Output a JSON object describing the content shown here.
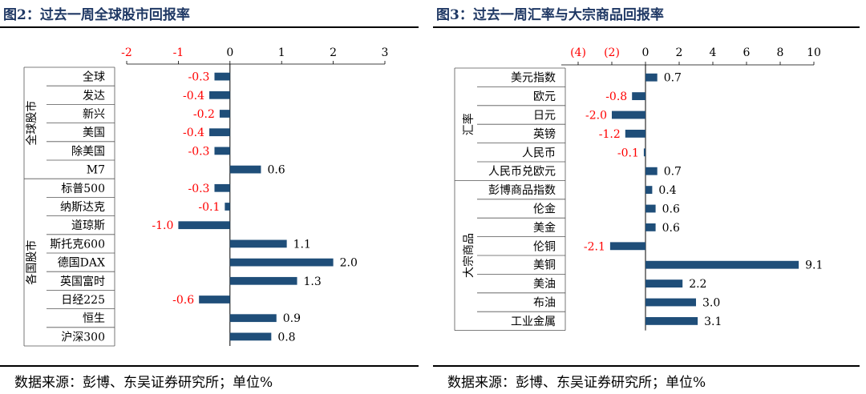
{
  "figures": [
    {
      "title": "图2：过去一周全球股市回报率",
      "source": "数据来源：彭博、东吴证券研究所；单位%",
      "chart_data": {
        "type": "bar",
        "orientation": "horizontal",
        "xlim": [
          -2,
          3
        ],
        "x_ticks": [
          -2,
          -1,
          0,
          1,
          2,
          3
        ],
        "x_tick_labels": [
          "-2",
          "-1",
          "0",
          "1",
          "2",
          "3"
        ],
        "negative_color": "#ff0000",
        "positive_color": "#000000",
        "bar_color": "#1f4e79",
        "groups": [
          {
            "label": "全球股市",
            "start": 0,
            "end": 5
          },
          {
            "label": "各国股市",
            "start": 6,
            "end": 14
          }
        ],
        "categories": [
          "全球",
          "发达",
          "新兴",
          "美国",
          "除美国",
          "M7",
          "标普500",
          "纳斯达克",
          "道琼斯",
          "斯托克600",
          "德国DAX",
          "英国富时",
          "日经225",
          "恒生",
          "沪深300"
        ],
        "values": [
          -0.3,
          -0.4,
          -0.2,
          -0.4,
          -0.3,
          0.6,
          -0.3,
          -0.1,
          -1.0,
          1.1,
          2.0,
          1.3,
          -0.6,
          0.9,
          0.8
        ],
        "value_labels": [
          "-0.3",
          "-0.4",
          "-0.2",
          "-0.4",
          "-0.3",
          "0.6",
          "-0.3",
          "-0.1",
          "-1.0",
          "1.1",
          "2.0",
          "1.3",
          "-0.6",
          "0.9",
          "0.8"
        ]
      }
    },
    {
      "title": "图3：过去一周汇率与大宗商品回报率",
      "source": "数据来源：彭博、东吴证券研究所；单位%",
      "chart_data": {
        "type": "bar",
        "orientation": "horizontal",
        "xlim": [
          -5,
          10
        ],
        "x_ticks": [
          -4,
          -2,
          0,
          2,
          4,
          6,
          8,
          10
        ],
        "x_tick_labels": [
          "(4)",
          "(2)",
          "0",
          "2",
          "4",
          "6",
          "8",
          "10"
        ],
        "negative_color": "#ff0000",
        "positive_color": "#000000",
        "bar_color": "#1f4e79",
        "groups": [
          {
            "label": "汇率",
            "start": 0,
            "end": 5
          },
          {
            "label": "大宗商品",
            "start": 6,
            "end": 13
          }
        ],
        "categories": [
          "美元指数",
          "欧元",
          "日元",
          "英镑",
          "人民币",
          "人民币兑欧元",
          "彭博商品指数",
          "伦金",
          "美金",
          "伦铜",
          "美铜",
          "美油",
          "布油",
          "工业金属"
        ],
        "values": [
          0.7,
          -0.8,
          -2.0,
          -1.2,
          -0.1,
          0.7,
          0.4,
          0.6,
          0.6,
          -2.1,
          9.1,
          2.2,
          3.0,
          3.1
        ],
        "value_labels": [
          "0.7",
          "-0.8",
          "-2.0",
          "-1.2",
          "-0.1",
          "0.7",
          "0.4",
          "0.6",
          "0.6",
          "-2.1",
          "9.1",
          "2.2",
          "3.0",
          "3.1"
        ]
      }
    }
  ]
}
